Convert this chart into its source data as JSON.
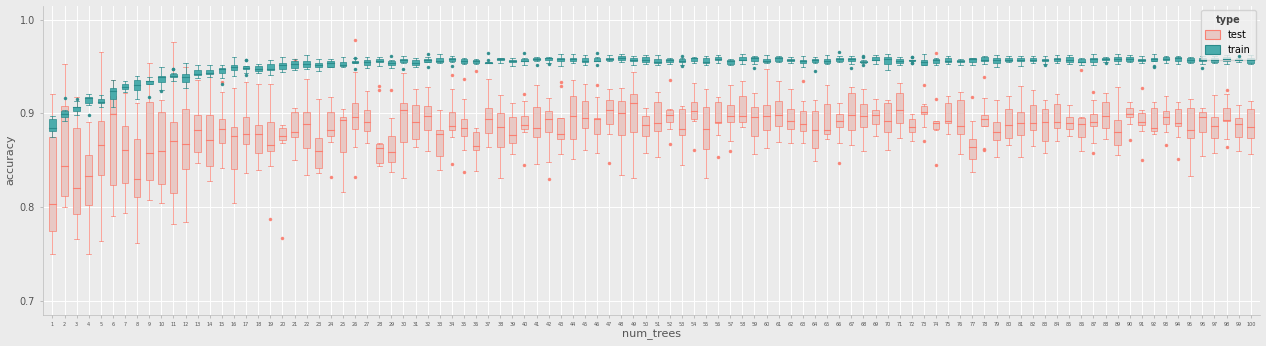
{
  "num_trees": [
    1,
    2,
    3,
    4,
    5,
    6,
    7,
    8,
    9,
    10,
    11,
    12,
    13,
    14,
    15,
    16,
    17,
    18,
    19,
    20,
    21,
    22,
    23,
    24,
    25,
    26,
    27,
    28,
    29,
    30,
    31,
    32,
    33,
    34,
    35,
    36,
    37,
    38,
    39,
    40,
    41,
    42,
    43,
    44,
    45,
    46,
    47,
    48,
    49,
    50,
    51,
    52,
    53,
    54,
    55,
    56,
    57,
    58,
    59,
    60,
    61,
    62,
    63,
    64,
    65,
    66,
    67,
    68,
    69,
    70,
    71,
    72,
    73,
    74,
    75,
    76,
    77,
    78,
    79,
    80,
    81,
    82,
    83,
    84,
    85,
    86,
    87,
    88,
    89,
    90,
    91,
    92,
    93,
    94,
    95,
    96,
    97,
    98,
    99,
    100
  ],
  "test_edge_color": "#FA8072",
  "test_fill_color": "#E8C8C4",
  "train_edge_color": "#2B8B8B",
  "train_fill_color": "#4AACAC",
  "bg_color": "#EBEBEB",
  "grid_color": "#FFFFFF",
  "ylabel": "accuracy",
  "xlabel": "num_trees",
  "ylim": [
    0.685,
    1.015
  ],
  "yticks": [
    0.7,
    0.8,
    0.9,
    1.0
  ],
  "ytick_labels": [
    "0.7",
    "0.8",
    "0.9",
    "1.0"
  ],
  "legend_title": "type",
  "legend_test_label": "test",
  "legend_train_label": "train"
}
